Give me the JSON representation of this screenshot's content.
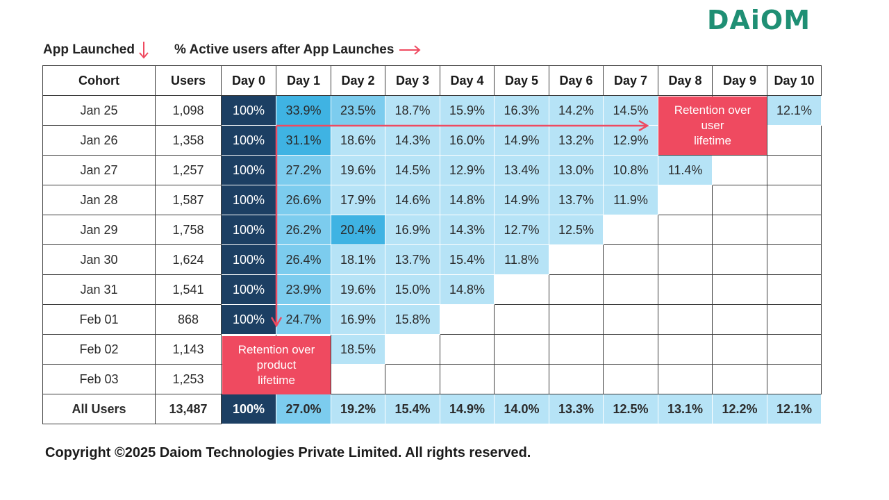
{
  "brand": "DAiOM",
  "labels": {
    "rows_caption": "App Launched",
    "cols_caption": "% Active users after App Launches"
  },
  "callouts": {
    "product": "Retention over\nproduct\nlifetime",
    "user": "Retention over\nuser\nlifetime"
  },
  "footer": "Copyright ©2025 Daiom Technologies Private Limited. All rights reserved.",
  "colors": {
    "accent": "#ef4a60",
    "brand": "#1f8f74",
    "day0": "#1c3f63",
    "strong": "#3fb3e3",
    "mid": "#7cccee",
    "light": "#b6e3f6"
  },
  "chart_data": {
    "type": "table",
    "title": "",
    "columns": [
      "Cohort",
      "Users",
      "Day 0",
      "Day 1",
      "Day 2",
      "Day 3",
      "Day 4",
      "Day 5",
      "Day 6",
      "Day 7",
      "Day 8",
      "Day 9",
      "Day 10"
    ],
    "rows": [
      {
        "cohort": "Jan 25",
        "users": "1,098",
        "values": [
          "100%",
          "33.9%",
          "23.5%",
          "18.7%",
          "15.9%",
          "16.3%",
          "14.2%",
          "14.5%",
          "",
          "",
          "12.1%"
        ]
      },
      {
        "cohort": "Jan 26",
        "users": "1,358",
        "values": [
          "100%",
          "31.1%",
          "18.6%",
          "14.3%",
          "16.0%",
          "14.9%",
          "13.2%",
          "12.9%",
          "",
          "",
          ""
        ]
      },
      {
        "cohort": "Jan 27",
        "users": "1,257",
        "values": [
          "100%",
          "27.2%",
          "19.6%",
          "14.5%",
          "12.9%",
          "13.4%",
          "13.0%",
          "10.8%",
          "11.4%",
          "",
          ""
        ]
      },
      {
        "cohort": "Jan 28",
        "users": "1,587",
        "values": [
          "100%",
          "26.6%",
          "17.9%",
          "14.6%",
          "14.8%",
          "14.9%",
          "13.7%",
          "11.9%",
          "",
          "",
          ""
        ]
      },
      {
        "cohort": "Jan 29",
        "users": "1,758",
        "values": [
          "100%",
          "26.2%",
          "20.4%",
          "16.9%",
          "14.3%",
          "12.7%",
          "12.5%",
          "",
          "",
          "",
          ""
        ]
      },
      {
        "cohort": "Jan 30",
        "users": "1,624",
        "values": [
          "100%",
          "26.4%",
          "18.1%",
          "13.7%",
          "15.4%",
          "11.8%",
          "",
          "",
          "",
          "",
          ""
        ]
      },
      {
        "cohort": "Jan 31",
        "users": "1,541",
        "values": [
          "100%",
          "23.9%",
          "19.6%",
          "15.0%",
          "14.8%",
          "",
          "",
          "",
          "",
          "",
          ""
        ]
      },
      {
        "cohort": "Feb 01",
        "users": "868",
        "values": [
          "100%",
          "24.7%",
          "16.9%",
          "15.8%",
          "",
          "",
          "",
          "",
          "",
          "",
          ""
        ]
      },
      {
        "cohort": "Feb 02",
        "users": "1,143",
        "values": [
          "",
          "",
          "18.5%",
          "",
          "",
          "",
          "",
          "",
          "",
          "",
          ""
        ]
      },
      {
        "cohort": "Feb 03",
        "users": "1,253",
        "values": [
          "",
          "",
          "",
          "",
          "",
          "",
          "",
          "",
          "",
          "",
          ""
        ]
      }
    ],
    "total": {
      "cohort": "All Users",
      "users": "13,487",
      "values": [
        "100%",
        "27.0%",
        "19.2%",
        "15.4%",
        "14.9%",
        "14.0%",
        "13.3%",
        "12.5%",
        "13.1%",
        "12.2%",
        "12.1%"
      ]
    },
    "shade": {
      "strong": [
        "33.9%",
        "31.1%",
        "20.4%"
      ],
      "mid": [
        "23.5%",
        "27.2%",
        "26.6%",
        "26.2%",
        "26.4%",
        "23.9%",
        "24.7%",
        "27.0%"
      ]
    }
  }
}
